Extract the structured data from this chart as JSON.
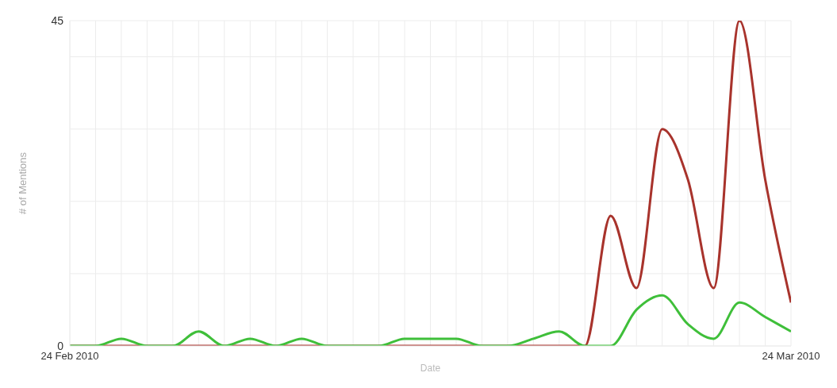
{
  "chart_data": {
    "type": "line",
    "xlabel": "Date",
    "ylabel": "# of Mentions",
    "x": [
      "2010-02-24",
      "2010-02-25",
      "2010-02-26",
      "2010-02-27",
      "2010-02-28",
      "2010-03-01",
      "2010-03-02",
      "2010-03-03",
      "2010-03-04",
      "2010-03-05",
      "2010-03-06",
      "2010-03-07",
      "2010-03-08",
      "2010-03-09",
      "2010-03-10",
      "2010-03-11",
      "2010-03-12",
      "2010-03-13",
      "2010-03-14",
      "2010-03-15",
      "2010-03-16",
      "2010-03-17",
      "2010-03-18",
      "2010-03-19",
      "2010-03-20",
      "2010-03-21",
      "2010-03-22",
      "2010-03-23",
      "2010-03-24"
    ],
    "series": [
      {
        "color": "#a8332c",
        "values": [
          0,
          0,
          0,
          0,
          0,
          0,
          0,
          0,
          0,
          0,
          0,
          0,
          0,
          0,
          0,
          0,
          0,
          0,
          0,
          0,
          0,
          18,
          8,
          30,
          23,
          8,
          45,
          23,
          6
        ]
      },
      {
        "color": "#3fbf3a",
        "values": [
          0,
          0,
          1,
          0,
          0,
          2,
          0,
          1,
          0,
          1,
          0,
          0,
          0,
          1,
          1,
          1,
          0,
          0,
          1,
          2,
          0,
          0,
          5,
          7,
          3,
          1,
          6,
          4,
          2
        ]
      }
    ],
    "xlim": [
      "2010-02-24",
      "2010-03-24"
    ],
    "xticks": [
      {
        "value": "2010-02-24",
        "label": "24 Feb 2010"
      },
      {
        "value": "2010-02-25",
        "label": null
      },
      {
        "value": "2010-02-26",
        "label": null
      },
      {
        "value": "2010-02-27",
        "label": null
      },
      {
        "value": "2010-02-28",
        "label": null
      },
      {
        "value": "2010-03-01",
        "label": null
      },
      {
        "value": "2010-03-02",
        "label": null
      },
      {
        "value": "2010-03-03",
        "label": null
      },
      {
        "value": "2010-03-04",
        "label": null
      },
      {
        "value": "2010-03-05",
        "label": null
      },
      {
        "value": "2010-03-06",
        "label": null
      },
      {
        "value": "2010-03-07",
        "label": null
      },
      {
        "value": "2010-03-08",
        "label": null
      },
      {
        "value": "2010-03-09",
        "label": null
      },
      {
        "value": "2010-03-10",
        "label": null
      },
      {
        "value": "2010-03-11",
        "label": null
      },
      {
        "value": "2010-03-12",
        "label": null
      },
      {
        "value": "2010-03-13",
        "label": null
      },
      {
        "value": "2010-03-14",
        "label": null
      },
      {
        "value": "2010-03-15",
        "label": null
      },
      {
        "value": "2010-03-16",
        "label": null
      },
      {
        "value": "2010-03-17",
        "label": null
      },
      {
        "value": "2010-03-18",
        "label": null
      },
      {
        "value": "2010-03-19",
        "label": null
      },
      {
        "value": "2010-03-20",
        "label": null
      },
      {
        "value": "2010-03-21",
        "label": null
      },
      {
        "value": "2010-03-22",
        "label": null
      },
      {
        "value": "2010-03-23",
        "label": null
      },
      {
        "value": "2010-03-24",
        "label": "24 Mar 2010"
      }
    ],
    "ylim": [
      0,
      45
    ],
    "yticks": [
      0,
      {
        "value": 10,
        "label": null
      },
      {
        "value": 20,
        "label": null
      },
      {
        "value": 30,
        "label": null
      },
      {
        "value": 40,
        "label": null
      },
      45
    ],
    "grid": true,
    "marker": "none",
    "line_style": "solid"
  }
}
